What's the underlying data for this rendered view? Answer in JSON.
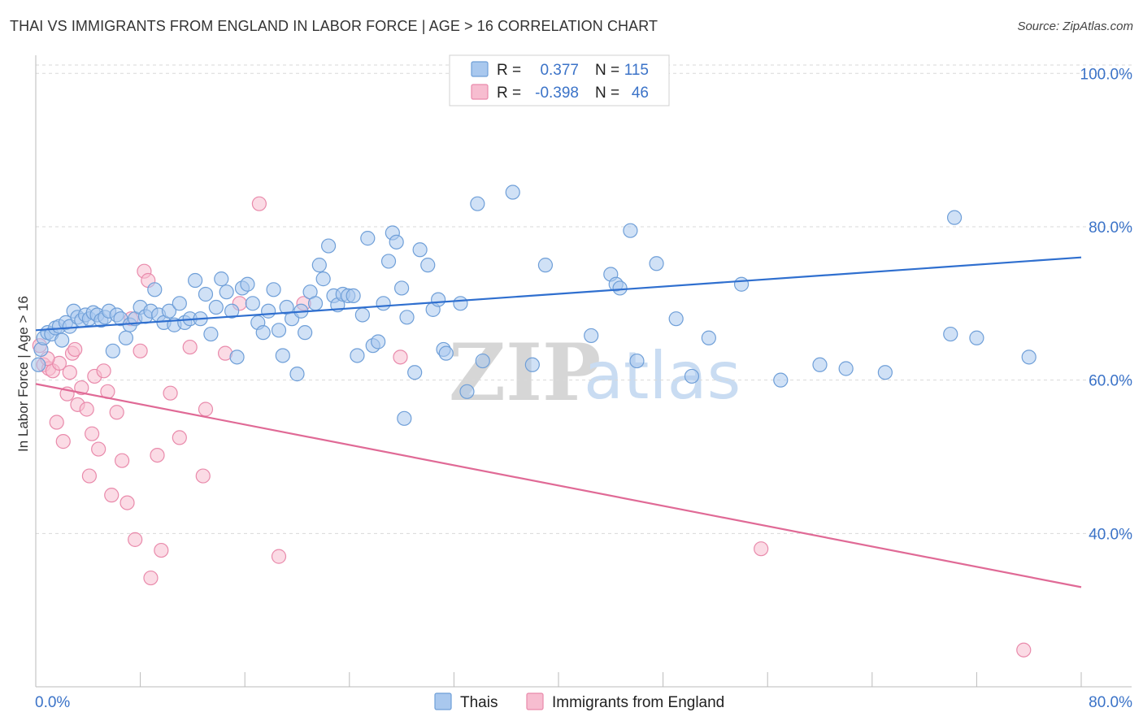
{
  "title": "THAI VS IMMIGRANTS FROM ENGLAND IN LABOR FORCE | AGE > 16 CORRELATION CHART",
  "source": "Source: ZipAtlas.com",
  "watermark": {
    "zip": "ZIP",
    "atlas": "atlas"
  },
  "colors": {
    "thai_fill": "#a9c8ee",
    "thai_stroke": "#6f9fd8",
    "thai_line": "#2f6fcf",
    "eng_fill": "#f7bdd0",
    "eng_stroke": "#e98aab",
    "eng_line": "#e06a96",
    "grid": "#d9d9d9",
    "accent_text": "#3b73c8"
  },
  "legend": {
    "rows": [
      {
        "r_label": "R =",
        "r_value": "0.377",
        "n_label": "N =",
        "n_value": "115"
      },
      {
        "r_label": "R =",
        "r_value": "-0.398",
        "n_label": "N =",
        "n_value": "46"
      }
    ]
  },
  "bottom_legend": [
    "Thais",
    "Immigrants from England"
  ],
  "chart_data": {
    "type": "scatter",
    "title": "THAI VS IMMIGRANTS FROM ENGLAND IN LABOR FORCE | AGE > 16 CORRELATION CHART",
    "xlabel": "",
    "ylabel": "In Labor Force | Age > 16",
    "xlim": [
      0,
      80
    ],
    "ylim": [
      20,
      103
    ],
    "y_ticks": [
      40,
      60,
      80,
      100
    ],
    "y_tick_labels": [
      "40.0%",
      "60.0%",
      "80.0%",
      "100.0%"
    ],
    "x_tick_labels": [
      "0.0%",
      "80.0%"
    ],
    "grid": true,
    "legend_position": "top-center",
    "series": [
      {
        "name": "Thais",
        "r": 0.377,
        "n": 115,
        "trend": {
          "x": [
            0,
            80
          ],
          "y": [
            66.5,
            76.0
          ]
        },
        "points": [
          [
            0.2,
            62.0
          ],
          [
            0.4,
            64.0
          ],
          [
            0.6,
            65.5
          ],
          [
            0.9,
            66.2
          ],
          [
            1.2,
            66.0
          ],
          [
            1.5,
            66.8
          ],
          [
            1.8,
            67.0
          ],
          [
            2.0,
            65.2
          ],
          [
            2.3,
            67.5
          ],
          [
            2.6,
            67.0
          ],
          [
            2.9,
            69.0
          ],
          [
            3.2,
            68.2
          ],
          [
            3.5,
            67.8
          ],
          [
            3.8,
            68.5
          ],
          [
            4.1,
            68.0
          ],
          [
            4.4,
            68.8
          ],
          [
            4.7,
            68.5
          ],
          [
            5.0,
            67.8
          ],
          [
            5.3,
            68.2
          ],
          [
            5.6,
            69.0
          ],
          [
            5.9,
            63.8
          ],
          [
            6.2,
            68.5
          ],
          [
            6.5,
            68.0
          ],
          [
            6.9,
            65.5
          ],
          [
            7.2,
            67.2
          ],
          [
            7.6,
            68.0
          ],
          [
            8.0,
            69.5
          ],
          [
            8.4,
            68.3
          ],
          [
            8.8,
            69.0
          ],
          [
            9.1,
            71.8
          ],
          [
            9.4,
            68.5
          ],
          [
            9.8,
            67.5
          ],
          [
            10.2,
            69.0
          ],
          [
            10.6,
            67.2
          ],
          [
            11.0,
            70.0
          ],
          [
            11.4,
            67.5
          ],
          [
            11.8,
            68.0
          ],
          [
            12.2,
            73.0
          ],
          [
            12.6,
            68.0
          ],
          [
            13.0,
            71.2
          ],
          [
            13.4,
            66.0
          ],
          [
            13.8,
            69.5
          ],
          [
            14.2,
            73.2
          ],
          [
            14.6,
            71.5
          ],
          [
            15.0,
            69.0
          ],
          [
            15.4,
            63.0
          ],
          [
            15.8,
            72.0
          ],
          [
            16.2,
            72.5
          ],
          [
            16.6,
            70.0
          ],
          [
            17.0,
            67.5
          ],
          [
            17.4,
            66.2
          ],
          [
            17.8,
            69.0
          ],
          [
            18.2,
            71.8
          ],
          [
            18.6,
            66.5
          ],
          [
            18.9,
            63.2
          ],
          [
            19.2,
            69.5
          ],
          [
            19.6,
            68.0
          ],
          [
            20.0,
            60.8
          ],
          [
            20.3,
            69.0
          ],
          [
            20.6,
            66.2
          ],
          [
            21.0,
            71.5
          ],
          [
            21.4,
            70.0
          ],
          [
            21.7,
            75.0
          ],
          [
            22.0,
            73.2
          ],
          [
            22.4,
            77.5
          ],
          [
            22.8,
            71.0
          ],
          [
            23.1,
            69.8
          ],
          [
            23.5,
            71.2
          ],
          [
            23.9,
            71.0
          ],
          [
            24.3,
            71.0
          ],
          [
            24.6,
            63.2
          ],
          [
            25.0,
            68.5
          ],
          [
            25.4,
            78.5
          ],
          [
            25.8,
            64.5
          ],
          [
            26.2,
            65.0
          ],
          [
            26.6,
            70.0
          ],
          [
            27.0,
            75.5
          ],
          [
            27.3,
            79.2
          ],
          [
            27.6,
            78.0
          ],
          [
            28.0,
            72.0
          ],
          [
            28.2,
            55.0
          ],
          [
            28.4,
            68.2
          ],
          [
            29.0,
            61.0
          ],
          [
            29.4,
            77.0
          ],
          [
            30.0,
            75.0
          ],
          [
            30.4,
            69.2
          ],
          [
            30.8,
            70.5
          ],
          [
            31.2,
            64.0
          ],
          [
            31.4,
            63.5
          ],
          [
            32.5,
            70.0
          ],
          [
            33.0,
            58.5
          ],
          [
            33.8,
            83.0
          ],
          [
            34.2,
            62.5
          ],
          [
            36.5,
            84.5
          ],
          [
            38.0,
            62.0
          ],
          [
            39.0,
            75.0
          ],
          [
            42.5,
            65.8
          ],
          [
            44.0,
            73.8
          ],
          [
            45.5,
            79.5
          ],
          [
            44.4,
            72.5
          ],
          [
            44.7,
            72.0
          ],
          [
            46.0,
            62.5
          ],
          [
            47.5,
            75.2
          ],
          [
            49.0,
            68.0
          ],
          [
            50.2,
            60.5
          ],
          [
            51.5,
            65.5
          ],
          [
            54.0,
            72.5
          ],
          [
            57.0,
            60.0
          ],
          [
            60.0,
            62.0
          ],
          [
            62.0,
            61.5
          ],
          [
            65.0,
            61.0
          ],
          [
            70.0,
            66.0
          ],
          [
            72.0,
            65.5
          ],
          [
            76.0,
            63.0
          ],
          [
            70.3,
            81.2
          ]
        ]
      },
      {
        "name": "Immigrants from England",
        "r": -0.398,
        "n": 46,
        "trend": {
          "x": [
            0,
            80
          ],
          "y": [
            59.5,
            33.0
          ]
        },
        "points": [
          [
            0.3,
            64.5
          ],
          [
            0.6,
            62.0
          ],
          [
            1.0,
            61.5
          ],
          [
            1.3,
            61.2
          ],
          [
            1.8,
            62.2
          ],
          [
            1.6,
            54.5
          ],
          [
            2.1,
            52.0
          ],
          [
            2.4,
            58.2
          ],
          [
            2.8,
            63.5
          ],
          [
            3.0,
            64.0
          ],
          [
            3.2,
            56.8
          ],
          [
            3.5,
            59.0
          ],
          [
            3.9,
            56.2
          ],
          [
            4.3,
            53.0
          ],
          [
            4.8,
            51.0
          ],
          [
            4.1,
            47.5
          ],
          [
            4.5,
            60.5
          ],
          [
            5.2,
            61.2
          ],
          [
            5.5,
            58.5
          ],
          [
            5.8,
            45.0
          ],
          [
            6.2,
            55.8
          ],
          [
            6.6,
            49.5
          ],
          [
            7.0,
            44.0
          ],
          [
            7.3,
            68.0
          ],
          [
            7.6,
            39.2
          ],
          [
            8.0,
            63.8
          ],
          [
            8.3,
            74.2
          ],
          [
            8.6,
            73.0
          ],
          [
            8.8,
            34.2
          ],
          [
            9.3,
            50.2
          ],
          [
            9.6,
            37.8
          ],
          [
            10.3,
            58.3
          ],
          [
            11.0,
            52.5
          ],
          [
            11.8,
            64.3
          ],
          [
            12.8,
            47.5
          ],
          [
            13.0,
            56.2
          ],
          [
            14.5,
            63.5
          ],
          [
            15.6,
            70.0
          ],
          [
            17.1,
            83.0
          ],
          [
            18.6,
            37.0
          ],
          [
            20.5,
            70.0
          ],
          [
            27.9,
            63.0
          ],
          [
            55.5,
            38.0
          ],
          [
            75.6,
            24.8
          ],
          [
            0.9,
            62.8
          ],
          [
            2.6,
            61.0
          ]
        ]
      }
    ]
  }
}
